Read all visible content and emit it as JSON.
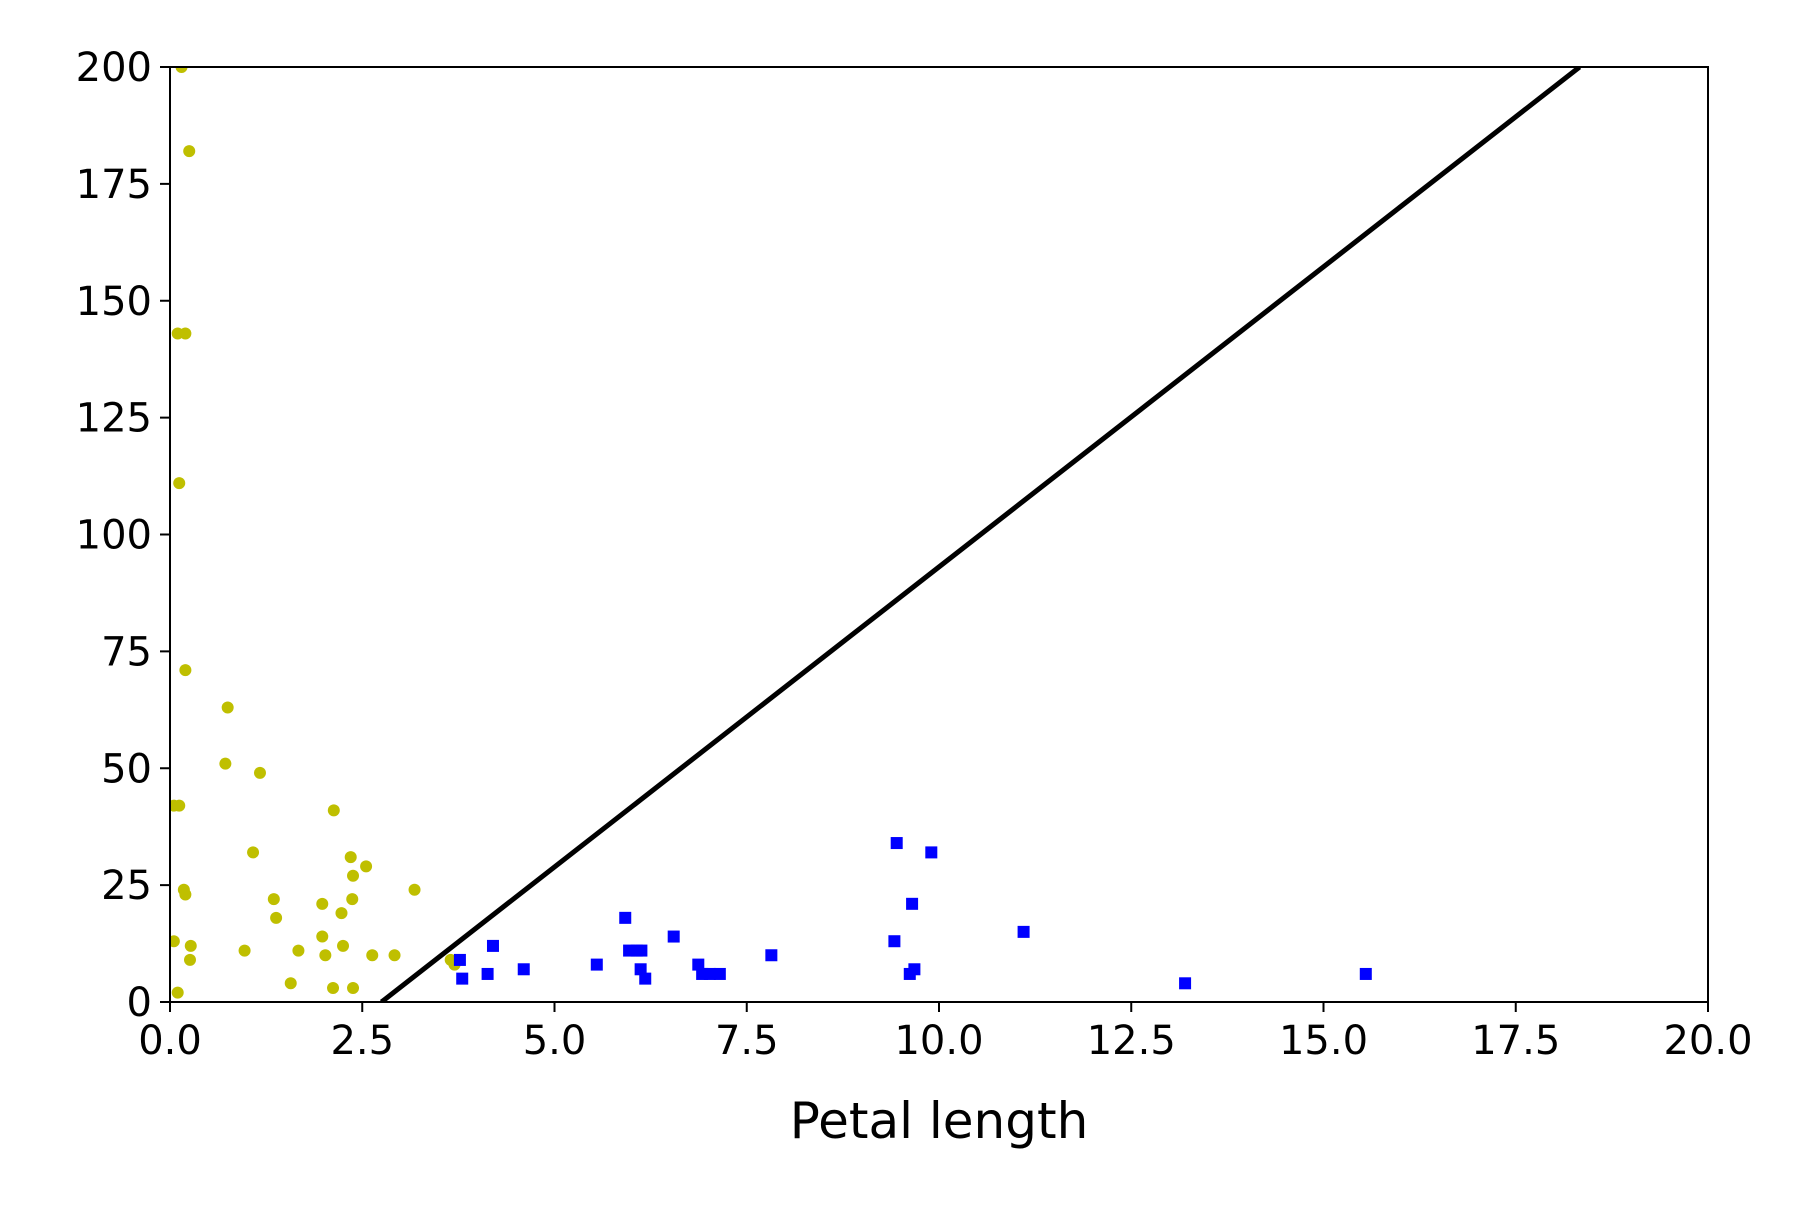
{
  "chart_data": {
    "type": "scatter",
    "xlabel": "Petal length",
    "ylabel": "",
    "xlim": [
      0,
      20
    ],
    "ylim": [
      0,
      200
    ],
    "x_ticks": [
      0,
      2.5,
      5,
      7.5,
      10,
      12.5,
      15,
      17.5,
      20
    ],
    "x_tick_labels": [
      "0.0",
      "2.5",
      "5.0",
      "7.5",
      "10.0",
      "12.5",
      "15.0",
      "17.5",
      "20.0"
    ],
    "y_ticks": [
      0,
      25,
      50,
      75,
      100,
      125,
      150,
      175,
      200
    ],
    "y_tick_labels": [
      "0",
      "25",
      "50",
      "75",
      "100",
      "125",
      "150",
      "175",
      "200"
    ],
    "grid": false,
    "legend": "none",
    "series": [
      {
        "marker": "circle",
        "color": "#bfbf00",
        "points": [
          [
            0.15,
            200
          ],
          [
            0.25,
            182
          ],
          [
            0.1,
            143
          ],
          [
            0.2,
            143
          ],
          [
            0.12,
            111
          ],
          [
            0.2,
            71
          ],
          [
            0.75,
            63
          ],
          [
            0.72,
            51
          ],
          [
            1.17,
            49
          ],
          [
            0.05,
            42
          ],
          [
            0.12,
            42
          ],
          [
            2.13,
            41
          ],
          [
            1.08,
            32
          ],
          [
            2.35,
            31
          ],
          [
            2.55,
            29
          ],
          [
            2.38,
            27
          ],
          [
            0.18,
            24
          ],
          [
            0.2,
            23
          ],
          [
            3.18,
            24
          ],
          [
            1.35,
            22
          ],
          [
            2.37,
            22
          ],
          [
            1.98,
            21
          ],
          [
            2.23,
            19
          ],
          [
            1.38,
            18
          ],
          [
            1.98,
            14
          ],
          [
            0.05,
            13
          ],
          [
            0.27,
            12
          ],
          [
            2.25,
            12
          ],
          [
            1.67,
            11
          ],
          [
            0.97,
            11
          ],
          [
            2.02,
            10
          ],
          [
            2.63,
            10
          ],
          [
            2.92,
            10
          ],
          [
            0.26,
            9
          ],
          [
            3.65,
            9
          ],
          [
            3.7,
            8
          ],
          [
            1.57,
            4
          ],
          [
            2.12,
            3
          ],
          [
            2.38,
            3
          ],
          [
            0.1,
            2
          ]
        ]
      },
      {
        "marker": "square",
        "color": "#0000ff",
        "points": [
          [
            9.45,
            34
          ],
          [
            9.9,
            32
          ],
          [
            9.65,
            21
          ],
          [
            5.92,
            18
          ],
          [
            11.1,
            15
          ],
          [
            6.55,
            14
          ],
          [
            9.42,
            13
          ],
          [
            4.2,
            12
          ],
          [
            5.97,
            11
          ],
          [
            6.07,
            11
          ],
          [
            6.13,
            11
          ],
          [
            7.82,
            10
          ],
          [
            3.77,
            9
          ],
          [
            5.55,
            8
          ],
          [
            6.87,
            8
          ],
          [
            4.6,
            7
          ],
          [
            6.12,
            7
          ],
          [
            9.68,
            7
          ],
          [
            4.13,
            6
          ],
          [
            6.92,
            6
          ],
          [
            7.02,
            6
          ],
          [
            7.15,
            6
          ],
          [
            9.62,
            6
          ],
          [
            15.55,
            6
          ],
          [
            3.8,
            5
          ],
          [
            6.18,
            5
          ],
          [
            13.2,
            4
          ]
        ]
      }
    ],
    "lines": [
      {
        "color": "#000000",
        "x": [
          2.75,
          18.33
        ],
        "y": [
          0,
          200
        ]
      }
    ]
  }
}
